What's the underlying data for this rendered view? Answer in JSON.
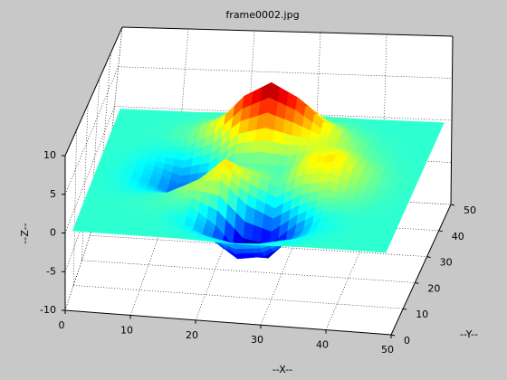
{
  "chart_data": {
    "type": "surface",
    "title": "frame0002.jpg",
    "xlabel": "--X--",
    "ylabel": "--Y--",
    "zlabel": "--Z--",
    "x": [
      1,
      5,
      9,
      13,
      17,
      21,
      25,
      29,
      33,
      37,
      41,
      45,
      49
    ],
    "y": [
      1,
      5,
      9,
      13,
      17,
      21,
      25,
      29,
      33,
      37,
      41,
      45,
      49
    ],
    "z": [
      [
        0,
        0,
        0,
        0,
        0,
        -0.1,
        -0.2,
        -0.2,
        -0.1,
        0,
        0,
        0,
        0
      ],
      [
        0,
        0,
        0,
        0,
        -0.2,
        -0.9,
        -1.6,
        -1.4,
        -0.7,
        -0.2,
        0,
        0,
        0
      ],
      [
        0,
        0,
        0,
        0,
        -0.6,
        -2.6,
        -4.8,
        -4.3,
        -2.1,
        -0.5,
        -0.1,
        0,
        0
      ],
      [
        0,
        0,
        0.1,
        0.3,
        0.1,
        -2.2,
        -5.7,
        -5.8,
        -2.6,
        -0.4,
        0,
        0,
        0
      ],
      [
        0,
        -0.1,
        -0.1,
        0.3,
        1.9,
        2.2,
        -0.7,
        -2.2,
        -0.3,
        0.9,
        0.5,
        0.1,
        0
      ],
      [
        0,
        -0.2,
        -0.8,
        -1.2,
        0.8,
        3.6,
        2.0,
        0.4,
        2.2,
        2.6,
        1.1,
        0.2,
        0
      ],
      [
        0,
        -0.3,
        -1.3,
        -2.8,
        -1.7,
        1.5,
        1.0,
        0.4,
        2.9,
        3.3,
        1.4,
        0.3,
        0
      ],
      [
        0,
        -0.2,
        -1.1,
        -2.5,
        -2.0,
        0.4,
        0.5,
        0.4,
        2.4,
        2.6,
        1.1,
        0.2,
        0
      ],
      [
        0,
        -0.1,
        -0.5,
        -0.9,
        0.2,
        2.8,
        3.7,
        2.9,
        2.4,
        1.6,
        0.6,
        0.1,
        0
      ],
      [
        0,
        0,
        0,
        0.5,
        2.6,
        6.2,
        8.0,
        6.3,
        3.3,
        1.2,
        0.3,
        0,
        0
      ],
      [
        0,
        0,
        0.1,
        0.6,
        2.1,
        4.6,
        5.9,
        4.6,
        2.2,
        0.7,
        0.1,
        0,
        0
      ],
      [
        0,
        0,
        0,
        0.2,
        0.7,
        1.5,
        1.9,
        1.5,
        0.7,
        0.2,
        0,
        0,
        0
      ],
      [
        0,
        0,
        0,
        0,
        0.1,
        0.2,
        0.3,
        0.2,
        0.1,
        0,
        0,
        0,
        0
      ]
    ],
    "xlim": [
      0,
      50
    ],
    "ylim": [
      0,
      50
    ],
    "zlim": [
      -10,
      10
    ],
    "xticks": [
      0,
      10,
      20,
      30,
      40,
      50
    ],
    "yticks": [
      0,
      10,
      20,
      30,
      40,
      50
    ],
    "zticks": [
      -10,
      -5,
      0,
      5,
      10
    ],
    "colormap": "jet",
    "grid": true
  }
}
